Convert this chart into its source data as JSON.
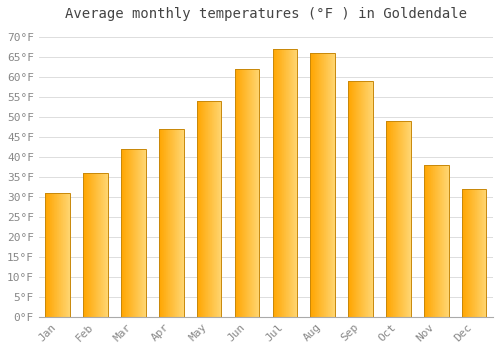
{
  "title": "Average monthly temperatures (°F ) in Goldendale",
  "months": [
    "Jan",
    "Feb",
    "Mar",
    "Apr",
    "May",
    "Jun",
    "Jul",
    "Aug",
    "Sep",
    "Oct",
    "Nov",
    "Dec"
  ],
  "values": [
    31,
    36,
    42,
    47,
    54,
    62,
    67,
    66,
    59,
    49,
    38,
    32
  ],
  "bar_color_main": "#FFA500",
  "bar_color_light": "#FFD070",
  "bar_border_color": "#C8880A",
  "background_color": "#FFFFFF",
  "grid_color": "#DDDDDD",
  "yticks": [
    0,
    5,
    10,
    15,
    20,
    25,
    30,
    35,
    40,
    45,
    50,
    55,
    60,
    65,
    70
  ],
  "ylim": [
    0,
    72
  ],
  "title_fontsize": 10,
  "tick_fontsize": 8,
  "tick_color": "#888888",
  "title_color": "#444444"
}
